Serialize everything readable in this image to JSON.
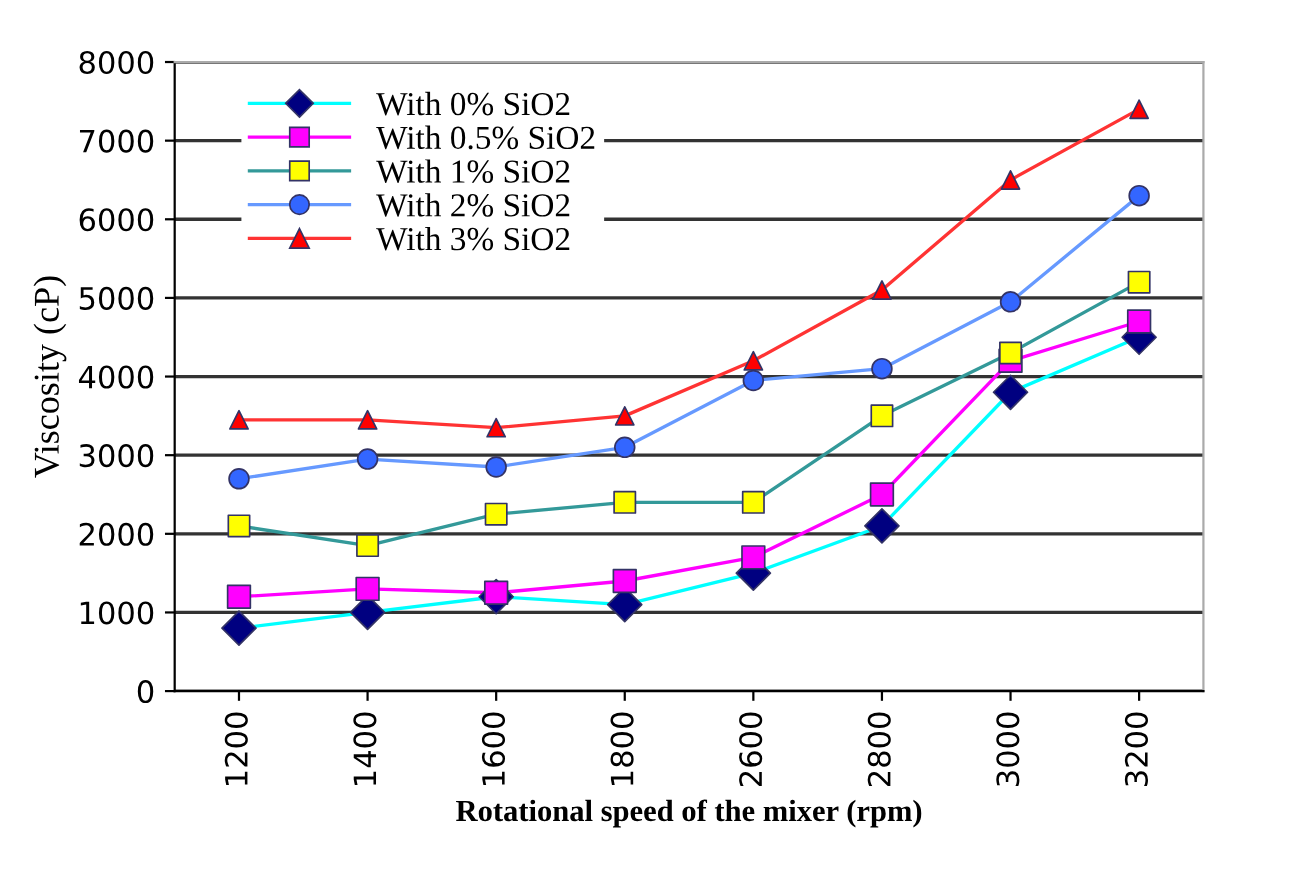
{
  "chart_data": {
    "type": "line",
    "xlabel": "Rotational speed of the mixer (rpm)",
    "ylabel": "Viscosity (cP)",
    "categories": [
      "1200",
      "1400",
      "1600",
      "1800",
      "2600",
      "2800",
      "3000",
      "3200"
    ],
    "series": [
      {
        "name": "With 0% SiO2",
        "color": "#00ffff",
        "colors": [
          "#000080",
          "#000080",
          "#000080",
          "#000080",
          "#000080",
          "#000080",
          "#000080",
          "#000080"
        ],
        "marker": "diamond",
        "values": [
          800,
          1000,
          1200,
          1100,
          1500,
          2100,
          3800,
          4500
        ]
      },
      {
        "name": "With 0.5% SiO2",
        "color": "#ff00ff",
        "colors": [
          "#ff00ff",
          "#ff00ff",
          "#ff00ff",
          "#ff00ff",
          "#ff00ff",
          "#ff00ff",
          "#ff00ff",
          "#ff00ff"
        ],
        "marker": "square",
        "values": [
          1200,
          1300,
          1250,
          1400,
          1700,
          2500,
          4200,
          4700
        ]
      },
      {
        "name": "With 1% SiO2",
        "color": "#339999",
        "colors": [
          "#ffff00",
          "#ffff00",
          "#ffff00",
          "#ffff00",
          "#ffff00",
          "#ffff00",
          "#ffff00",
          "#ffff00"
        ],
        "marker": "square",
        "values": [
          2100,
          1850,
          2250,
          2400,
          2400,
          3500,
          4300,
          5200
        ]
      },
      {
        "name": "With 2% SiO2",
        "color": "#6699ff",
        "colors": [
          "#3366ff",
          "#3366ff",
          "#3366ff",
          "#3366ff",
          "#3366ff",
          "#3366ff",
          "#3366ff",
          "#3366ff"
        ],
        "marker": "circle",
        "values": [
          2700,
          2950,
          2850,
          3100,
          3950,
          4100,
          4950,
          6300
        ]
      },
      {
        "name": "With 3% SiO2",
        "color": "#ff3333",
        "colors": [
          "#ff0000",
          "#ff0000",
          "#ff0000",
          "#ff0000",
          "#ff0000",
          "#ff0000",
          "#ff0000",
          "#ff0000"
        ],
        "marker": "triangle",
        "values": [
          3450,
          3450,
          3350,
          3500,
          4200,
          5100,
          6500,
          7400
        ]
      }
    ],
    "ylim": [
      0,
      8000
    ],
    "yticks": [
      0,
      1000,
      2000,
      3000,
      4000,
      5000,
      6000,
      7000,
      8000
    ],
    "grid": "y",
    "legend": "top left"
  }
}
